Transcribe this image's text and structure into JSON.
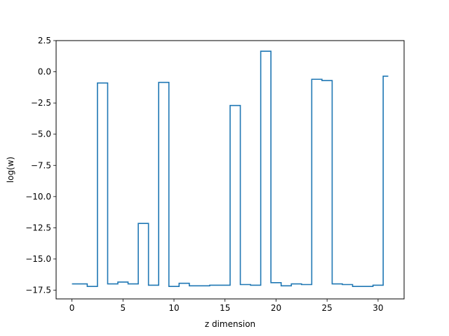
{
  "chart_data": {
    "type": "line",
    "drawstyle": "steps-mid",
    "xlabel": "z dimension",
    "ylabel": "log(w)",
    "xlim": [
      -1.55,
      32.55
    ],
    "ylim": [
      -18.2,
      2.5
    ],
    "xticks": [
      0,
      5,
      10,
      15,
      20,
      25,
      30
    ],
    "xtick_labels": [
      "0",
      "5",
      "10",
      "15",
      "20",
      "25",
      "30"
    ],
    "yticks": [
      2.5,
      0.0,
      -2.5,
      -5.0,
      -7.5,
      -10.0,
      -12.5,
      -15.0,
      -17.5
    ],
    "ytick_labels": [
      "2.5",
      "0.0",
      "−2.5",
      "−5.0",
      "−7.5",
      "−10.0",
      "−12.5",
      "−15.0",
      "−17.5"
    ],
    "grid": false,
    "line_color": "#1f77b4",
    "series": [
      {
        "x": [
          0,
          1,
          2,
          3,
          4,
          5,
          6,
          7,
          8,
          9,
          10,
          11,
          12,
          13,
          14,
          15,
          16,
          17,
          18,
          19,
          20,
          21,
          22,
          23,
          24,
          25,
          26,
          27,
          28,
          29,
          30,
          31
        ],
        "y": [
          -17.0,
          -17.0,
          -17.2,
          -0.9,
          -17.0,
          -16.85,
          -17.0,
          -12.15,
          -17.1,
          -0.85,
          -17.2,
          -16.95,
          -17.15,
          -17.15,
          -17.1,
          -17.1,
          -2.7,
          -17.05,
          -17.1,
          1.65,
          -16.9,
          -17.15,
          -17.0,
          -17.05,
          -0.6,
          -0.7,
          -17.0,
          -17.05,
          -17.2,
          -17.2,
          -17.1,
          -0.35
        ]
      }
    ]
  }
}
